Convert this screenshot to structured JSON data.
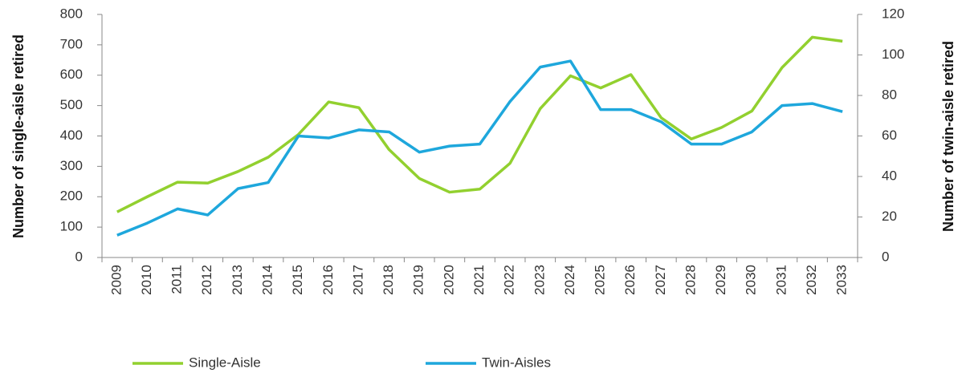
{
  "chart_data": {
    "type": "line",
    "y_label": "Number of single-aisle retired",
    "y2_label": "Number of twin-aisle retired",
    "categories": [
      "2009",
      "2010",
      "2011",
      "2012",
      "2013",
      "2014",
      "2015",
      "2016",
      "2017",
      "2018",
      "2019",
      "2020",
      "2021",
      "2022",
      "2023",
      "2024",
      "2025",
      "2026",
      "2027",
      "2028",
      "2029",
      "2030",
      "2031",
      "2032",
      "2033"
    ],
    "series": [
      {
        "name": "Single-Aisle",
        "color": "#92d02f",
        "axis": "y",
        "values": [
          150,
          200,
          248,
          245,
          283,
          330,
          405,
          512,
          493,
          355,
          260,
          215,
          225,
          310,
          490,
          598,
          558,
          602,
          460,
          390,
          428,
          482,
          625,
          725,
          712
        ]
      },
      {
        "name": "Twin-Aisles",
        "color": "#1ea7dc",
        "axis": "y2",
        "values": [
          11,
          17,
          24,
          21,
          34,
          37,
          60,
          59,
          63,
          62,
          52,
          55,
          56,
          77,
          94,
          97,
          73,
          73,
          67,
          56,
          56,
          62,
          75,
          76,
          72
        ]
      }
    ],
    "ylim": [
      0,
      800
    ],
    "yticks": [
      0,
      100,
      200,
      300,
      400,
      500,
      600,
      700,
      800
    ],
    "y2lim": [
      0,
      120
    ],
    "y2ticks": [
      0,
      20,
      40,
      60,
      80,
      100,
      120
    ],
    "grid": false,
    "legend": "bottom"
  }
}
